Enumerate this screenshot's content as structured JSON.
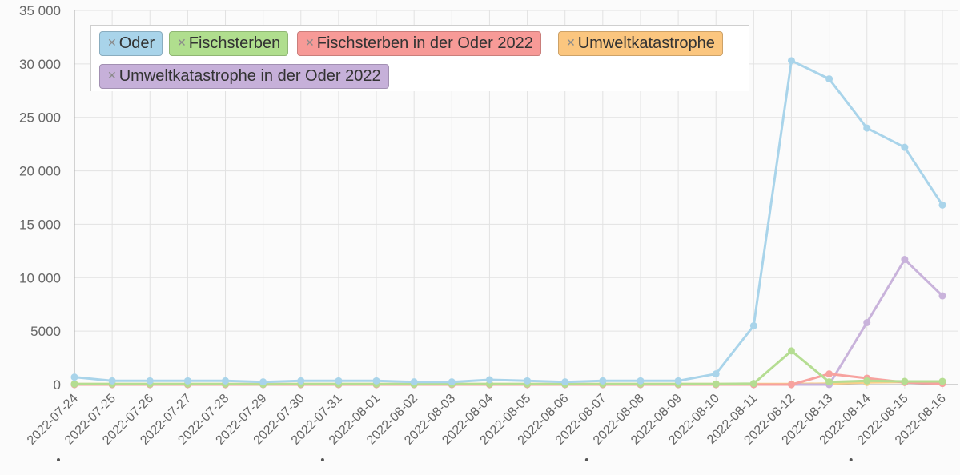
{
  "chart_data": {
    "type": "line",
    "title": "",
    "xlabel": "",
    "ylabel": "",
    "ylim": [
      0,
      35000
    ],
    "y_ticks": [
      0,
      5000,
      10000,
      15000,
      20000,
      25000,
      30000,
      35000
    ],
    "y_tick_labels": [
      "0",
      "5000",
      "10 000",
      "15 000",
      "20 000",
      "25 000",
      "30 000",
      "35 000"
    ],
    "categories": [
      "2022-07-24",
      "2022-07-25",
      "2022-07-26",
      "2022-07-27",
      "2022-07-28",
      "2022-07-29",
      "2022-07-30",
      "2022-07-31",
      "2022-08-01",
      "2022-08-02",
      "2022-08-03",
      "2022-08-04",
      "2022-08-05",
      "2022-08-06",
      "2022-08-07",
      "2022-08-08",
      "2022-08-09",
      "2022-08-10",
      "2022-08-11",
      "2022-08-12",
      "2022-08-13",
      "2022-08-14",
      "2022-08-15",
      "2022-08-16"
    ],
    "grid": true,
    "legend_position": "top-left",
    "series": [
      {
        "name": "Oder",
        "color": "#a9d4ea",
        "badge_color": "#a9d4ea",
        "values": [
          700,
          350,
          350,
          350,
          350,
          250,
          350,
          350,
          350,
          250,
          250,
          450,
          350,
          250,
          350,
          350,
          350,
          1000,
          5500,
          30300,
          28600,
          24000,
          22200,
          16800
        ]
      },
      {
        "name": "Fischsterben",
        "color": "#b5dd92",
        "badge_color": "#b0de8e",
        "values": [
          50,
          50,
          50,
          50,
          50,
          20,
          50,
          50,
          50,
          30,
          50,
          50,
          50,
          30,
          50,
          50,
          50,
          50,
          100,
          3150,
          250,
          350,
          300,
          300
        ]
      },
      {
        "name": "Fischsterben in der Oder 2022",
        "color": "#f7a29f",
        "badge_color": "#f79a97",
        "values": [
          0,
          0,
          0,
          0,
          0,
          0,
          0,
          0,
          0,
          0,
          0,
          0,
          0,
          0,
          0,
          0,
          0,
          0,
          0,
          0,
          1000,
          600,
          200,
          100
        ]
      },
      {
        "name": "Umweltkatastrophe",
        "color": "#f8cf8a",
        "badge_color": "#fbc67f",
        "values": [
          50,
          50,
          50,
          50,
          50,
          50,
          50,
          50,
          50,
          50,
          50,
          50,
          50,
          50,
          50,
          50,
          50,
          50,
          50,
          50,
          100,
          200,
          250,
          200
        ]
      },
      {
        "name": "Umweltkatastrophe in der Oder 2022",
        "color": "#c9b3db",
        "badge_color": "#c6b0d9",
        "values": [
          0,
          0,
          0,
          0,
          0,
          0,
          0,
          0,
          0,
          0,
          0,
          0,
          0,
          0,
          0,
          0,
          0,
          0,
          0,
          0,
          0,
          5800,
          11700,
          8300
        ]
      }
    ],
    "marked_dates": [
      "2022-07-24",
      "2022-07-31",
      "2022-08-07",
      "2022-08-14"
    ]
  }
}
